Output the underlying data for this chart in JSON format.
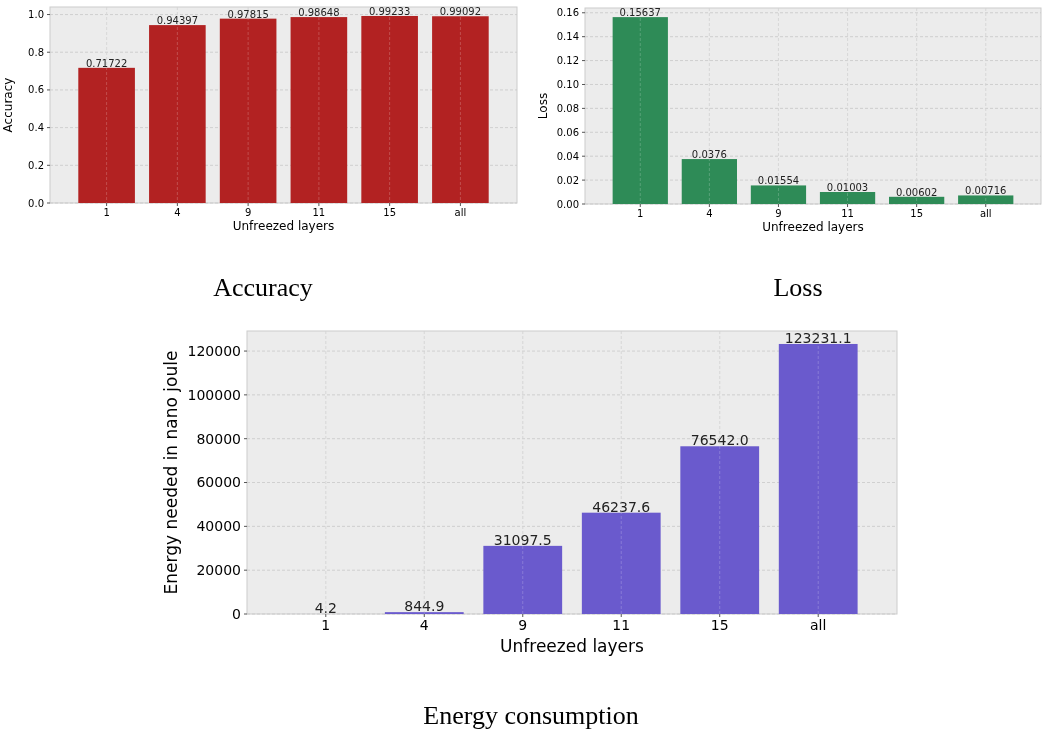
{
  "chart_data": [
    {
      "type": "bar",
      "xlabel": "Unfreezed layers",
      "ylabel": "Accuracy",
      "categories": [
        "1",
        "4",
        "9",
        "11",
        "15",
        "all"
      ],
      "values": [
        0.71722,
        0.94397,
        0.97815,
        0.98648,
        0.99233,
        0.99092
      ],
      "color": "#b22222",
      "value_labels": [
        "0.71722",
        "0.94397",
        "0.97815",
        "0.98648",
        "0.99233",
        "0.99092"
      ],
      "ylim": [
        0,
        1.04
      ],
      "yticks": [
        {
          "value": 0,
          "label": "0.0"
        },
        0.2,
        0.4,
        0.6,
        0.8,
        {
          "value": 1,
          "label": "1.0"
        }
      ],
      "grid": true,
      "annotations": [
        "Accuracy"
      ]
    },
    {
      "type": "bar",
      "xlabel": "Unfreezed layers",
      "ylabel": "Loss",
      "categories": [
        "1",
        "4",
        "9",
        "11",
        "15",
        "all"
      ],
      "values": [
        0.15637,
        0.0376,
        0.01554,
        0.01003,
        0.00602,
        0.00716
      ],
      "color": "#2e8b57",
      "value_labels": [
        "0.15637",
        "0.0376",
        "0.01554",
        "0.01003",
        "0.00602",
        "0.00716"
      ],
      "ylim": [
        0,
        0.164
      ],
      "yticks": [
        {
          "value": 0,
          "label": "0.00"
        },
        {
          "value": 0.02,
          "label": "0.02"
        },
        {
          "value": 0.04,
          "label": "0.04"
        },
        {
          "value": 0.06,
          "label": "0.06"
        },
        {
          "value": 0.08,
          "label": "0.08"
        },
        {
          "value": 0.1,
          "label": "0.10"
        },
        {
          "value": 0.12,
          "label": "0.12"
        },
        {
          "value": 0.14,
          "label": "0.14"
        },
        {
          "value": 0.16,
          "label": "0.16"
        }
      ],
      "grid": true,
      "annotations": [
        "Loss"
      ]
    },
    {
      "type": "bar",
      "xlabel": "Unfreezed layers",
      "ylabel": "Energy needed in nano joule",
      "categories": [
        "1",
        "4",
        "9",
        "11",
        "15",
        "all"
      ],
      "values": [
        4.2,
        844.9,
        31097.5,
        46237.6,
        76542.0,
        123231.1
      ],
      "color": "#6a5acd",
      "value_labels": [
        "4.2",
        "844.9",
        "31097.5",
        "46237.6",
        "76542.0",
        "123231.1"
      ],
      "ylim": [
        0,
        129150
      ],
      "yticks": [
        0,
        20000,
        40000,
        60000,
        80000,
        100000,
        120000
      ],
      "grid": true,
      "annotations": [
        "Energy consumption"
      ]
    }
  ]
}
